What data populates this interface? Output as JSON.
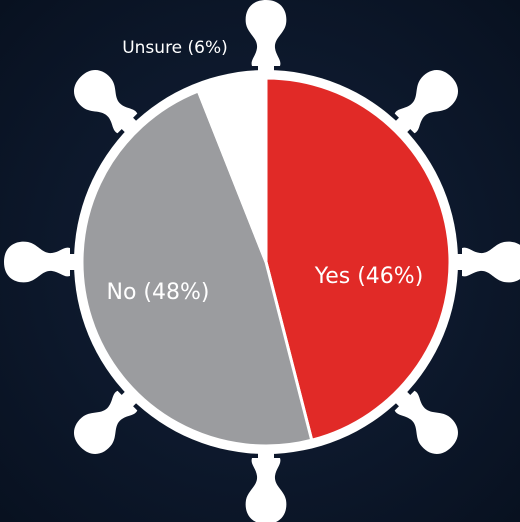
{
  "chart_data": {
    "type": "pie",
    "values": [
      46,
      48,
      6
    ],
    "value_labels": [
      "Yes (46%)",
      "No (48%)",
      "Unsure (6%)"
    ],
    "colors": [
      "#e12a27",
      "#9b9c9f",
      "#ffffff"
    ]
  }
}
